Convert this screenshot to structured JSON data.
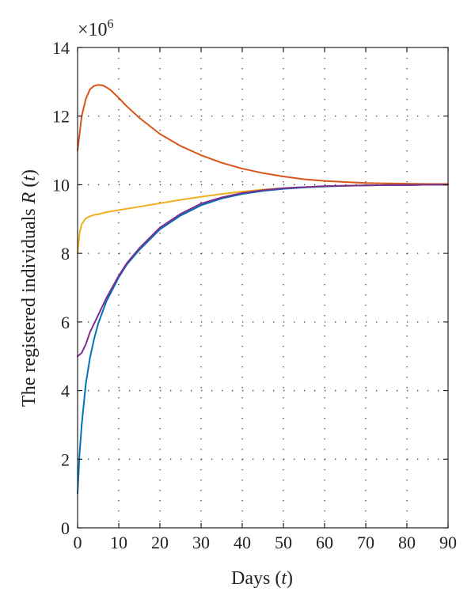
{
  "chart_data": {
    "type": "line",
    "title": "",
    "xlabel": "Days",
    "xlabel_var": "t",
    "ylabel": "The registered individuals",
    "ylabel_var_name": "R",
    "ylabel_var_arg": "t",
    "y_multiplier": "×10",
    "y_multiplier_exp": "6",
    "xlim": [
      0,
      90
    ],
    "ylim": [
      0,
      14
    ],
    "xticks": [
      "0",
      "10",
      "20",
      "30",
      "40",
      "50",
      "60",
      "70",
      "80",
      "90"
    ],
    "yticks": [
      "0",
      "2",
      "4",
      "6",
      "8",
      "10",
      "12",
      "14"
    ],
    "grid": true,
    "series": [
      {
        "color": "#d95319",
        "x": [
          0,
          1,
          2,
          3,
          4,
          5,
          6,
          7,
          8,
          10,
          12,
          15,
          20,
          25,
          30,
          35,
          40,
          45,
          50,
          55,
          60,
          65,
          70,
          75,
          80,
          85,
          90
        ],
        "y": [
          11.0,
          12.0,
          12.5,
          12.78,
          12.88,
          12.91,
          12.9,
          12.84,
          12.76,
          12.53,
          12.28,
          11.95,
          11.48,
          11.13,
          10.86,
          10.64,
          10.47,
          10.34,
          10.24,
          10.16,
          10.11,
          10.08,
          10.05,
          10.04,
          10.03,
          10.02,
          10.02
        ]
      },
      {
        "color": "#edb120",
        "x": [
          0,
          0.5,
          1,
          2,
          3,
          4,
          5,
          7,
          10,
          15,
          20,
          25,
          30,
          35,
          40,
          45,
          50,
          55,
          60,
          65,
          70,
          75,
          80,
          85,
          90
        ],
        "y": [
          8.0,
          8.6,
          8.85,
          9.02,
          9.08,
          9.12,
          9.14,
          9.2,
          9.26,
          9.36,
          9.46,
          9.56,
          9.65,
          9.73,
          9.8,
          9.86,
          9.9,
          9.93,
          9.95,
          9.97,
          9.98,
          9.99,
          9.99,
          10.0,
          10.0
        ]
      },
      {
        "color": "#0072bd",
        "x": [
          0,
          0.5,
          1,
          2,
          3,
          4,
          5,
          7,
          10,
          12,
          15,
          20,
          25,
          30,
          35,
          40,
          45,
          50,
          55,
          60,
          65,
          70,
          75,
          80,
          85,
          90
        ],
        "y": [
          1.0,
          2.2,
          3.0,
          4.2,
          4.95,
          5.5,
          5.95,
          6.6,
          7.3,
          7.68,
          8.1,
          8.7,
          9.1,
          9.4,
          9.6,
          9.73,
          9.82,
          9.88,
          9.92,
          9.95,
          9.97,
          9.98,
          9.99,
          9.99,
          10.0,
          10.0
        ]
      },
      {
        "color": "#7e2f8e",
        "x": [
          0,
          1,
          2,
          3,
          4,
          5,
          7,
          10,
          12,
          15,
          20,
          25,
          30,
          35,
          40,
          45,
          50,
          55,
          60,
          65,
          70,
          75,
          80,
          85,
          90
        ],
        "y": [
          5.0,
          5.1,
          5.35,
          5.7,
          5.95,
          6.2,
          6.7,
          7.35,
          7.72,
          8.15,
          8.75,
          9.15,
          9.45,
          9.63,
          9.76,
          9.84,
          9.9,
          9.93,
          9.96,
          9.97,
          9.98,
          9.99,
          9.99,
          10.0,
          10.0
        ]
      }
    ]
  }
}
